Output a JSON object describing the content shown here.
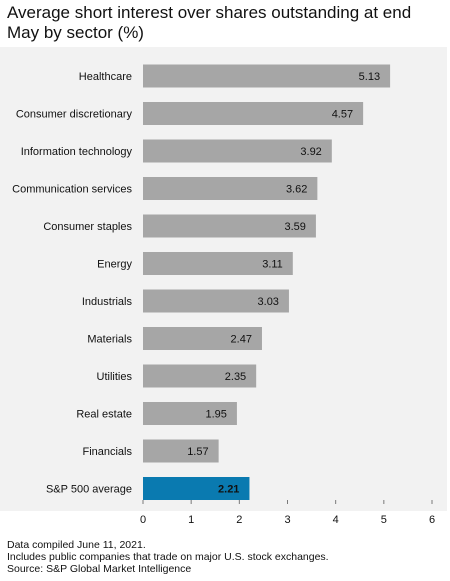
{
  "chart_data": {
    "type": "bar",
    "orientation": "horizontal",
    "title": "Average short interest over shares outstanding at end May by sector (%)",
    "categories": [
      "Healthcare",
      "Consumer discretionary",
      "Information technology",
      "Communication services",
      "Consumer staples",
      "Energy",
      "Industrials",
      "Materials",
      "Utilities",
      "Real estate",
      "Financials",
      "S&P 500 average"
    ],
    "values": [
      5.13,
      4.57,
      3.92,
      3.62,
      3.59,
      3.11,
      3.03,
      2.47,
      2.35,
      1.95,
      1.57,
      2.21
    ],
    "value_labels": [
      "5.13",
      "4.57",
      "3.92",
      "3.62",
      "3.59",
      "3.11",
      "3.03",
      "2.47",
      "2.35",
      "1.95",
      "1.57",
      "2.21"
    ],
    "xlim": [
      0,
      6
    ],
    "xticks": [
      "0",
      "1",
      "2",
      "3",
      "4",
      "5",
      "6"
    ],
    "bar_color": "#a6a6a6",
    "highlight_color": "#0a7ab0",
    "highlight_category": "S&P 500 average",
    "background": "#f2f2f2",
    "grid": false
  },
  "footer": {
    "line1": "Data compiled June 11, 2021.",
    "line2": "Includes public companies that trade on major U.S. stock exchanges.",
    "line3": "Source: S&P Global Market Intelligence"
  }
}
